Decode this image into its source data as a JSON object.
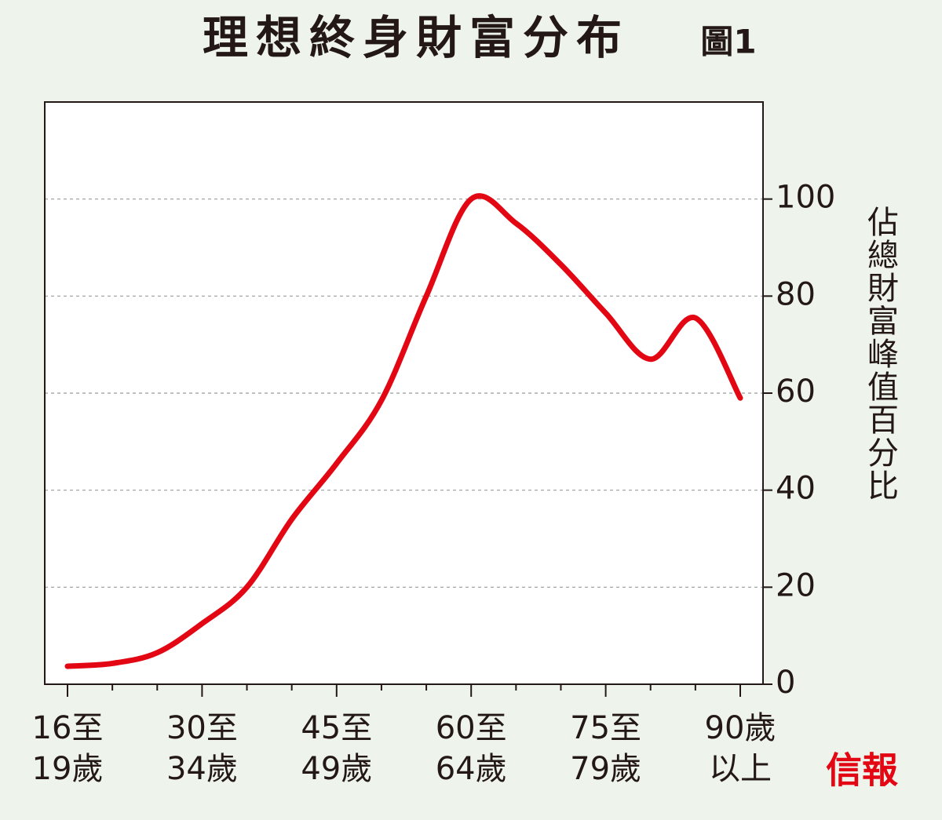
{
  "chart_data": {
    "type": "line",
    "title": "理想終身財富分布",
    "subtitle": "圖1",
    "y_axis_label": "佔總財富峰值百分比",
    "source_logo": "信報",
    "categories": [
      "16至\n19歲",
      null,
      null,
      "30至\n34歲",
      null,
      null,
      "45至\n49歲",
      null,
      null,
      "60至\n64歲",
      null,
      null,
      "75至\n79歲",
      null,
      null,
      "90歲\n以上"
    ],
    "series": [
      {
        "name": "財富",
        "color": "#e30613",
        "values": [
          3.7,
          4.3,
          6.5,
          12.5,
          20,
          34,
          45.5,
          58.5,
          80,
          100,
          95,
          86.5,
          76.5,
          67,
          75.5,
          59
        ]
      }
    ],
    "ylim": [
      0,
      120
    ],
    "yticks": [
      0,
      20,
      40,
      60,
      80,
      100
    ],
    "grid": true,
    "y_axis_side": "right"
  }
}
